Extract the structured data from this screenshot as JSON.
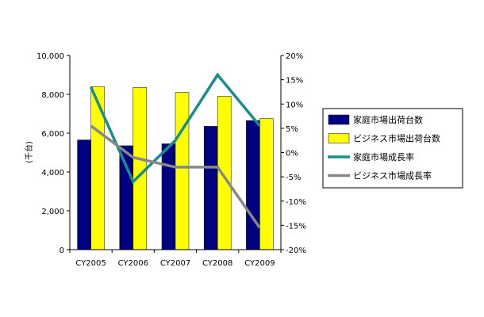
{
  "chart_data": {
    "type": "bar",
    "categories": [
      "CY2005",
      "CY2006",
      "CY2007",
      "CY2008",
      "CY2009"
    ],
    "ylabel": "(千台)",
    "ylim": [
      0,
      10000
    ],
    "y_ticks": [
      "0",
      "2,000",
      "4,000",
      "6,000",
      "8,000",
      "10,000"
    ],
    "y2lim": [
      -20,
      20
    ],
    "y2_ticks": [
      "-20%",
      "-15%",
      "-10%",
      "-5%",
      "0%",
      "5%",
      "10%",
      "15%",
      "20%"
    ],
    "legend_position": "right",
    "series": [
      {
        "name": "家庭市場出荷台数",
        "type": "bar",
        "axis": "left",
        "color": "#000080",
        "values": [
          5650,
          5350,
          5450,
          6350,
          6650
        ]
      },
      {
        "name": "ビジネス市場出荷台数",
        "type": "bar",
        "axis": "left",
        "color": "#FFFF00",
        "values": [
          8400,
          8350,
          8100,
          7900,
          6750
        ]
      },
      {
        "name": "家庭市場成長率",
        "type": "line",
        "axis": "right",
        "color": "#198C8C",
        "values": [
          13.5,
          -6,
          2.5,
          16,
          5.5
        ]
      },
      {
        "name": "ビジネス市場成長率",
        "type": "line",
        "axis": "right",
        "color": "#888888",
        "values": [
          5.5,
          -1,
          -3,
          -3,
          -15.5
        ]
      }
    ]
  }
}
